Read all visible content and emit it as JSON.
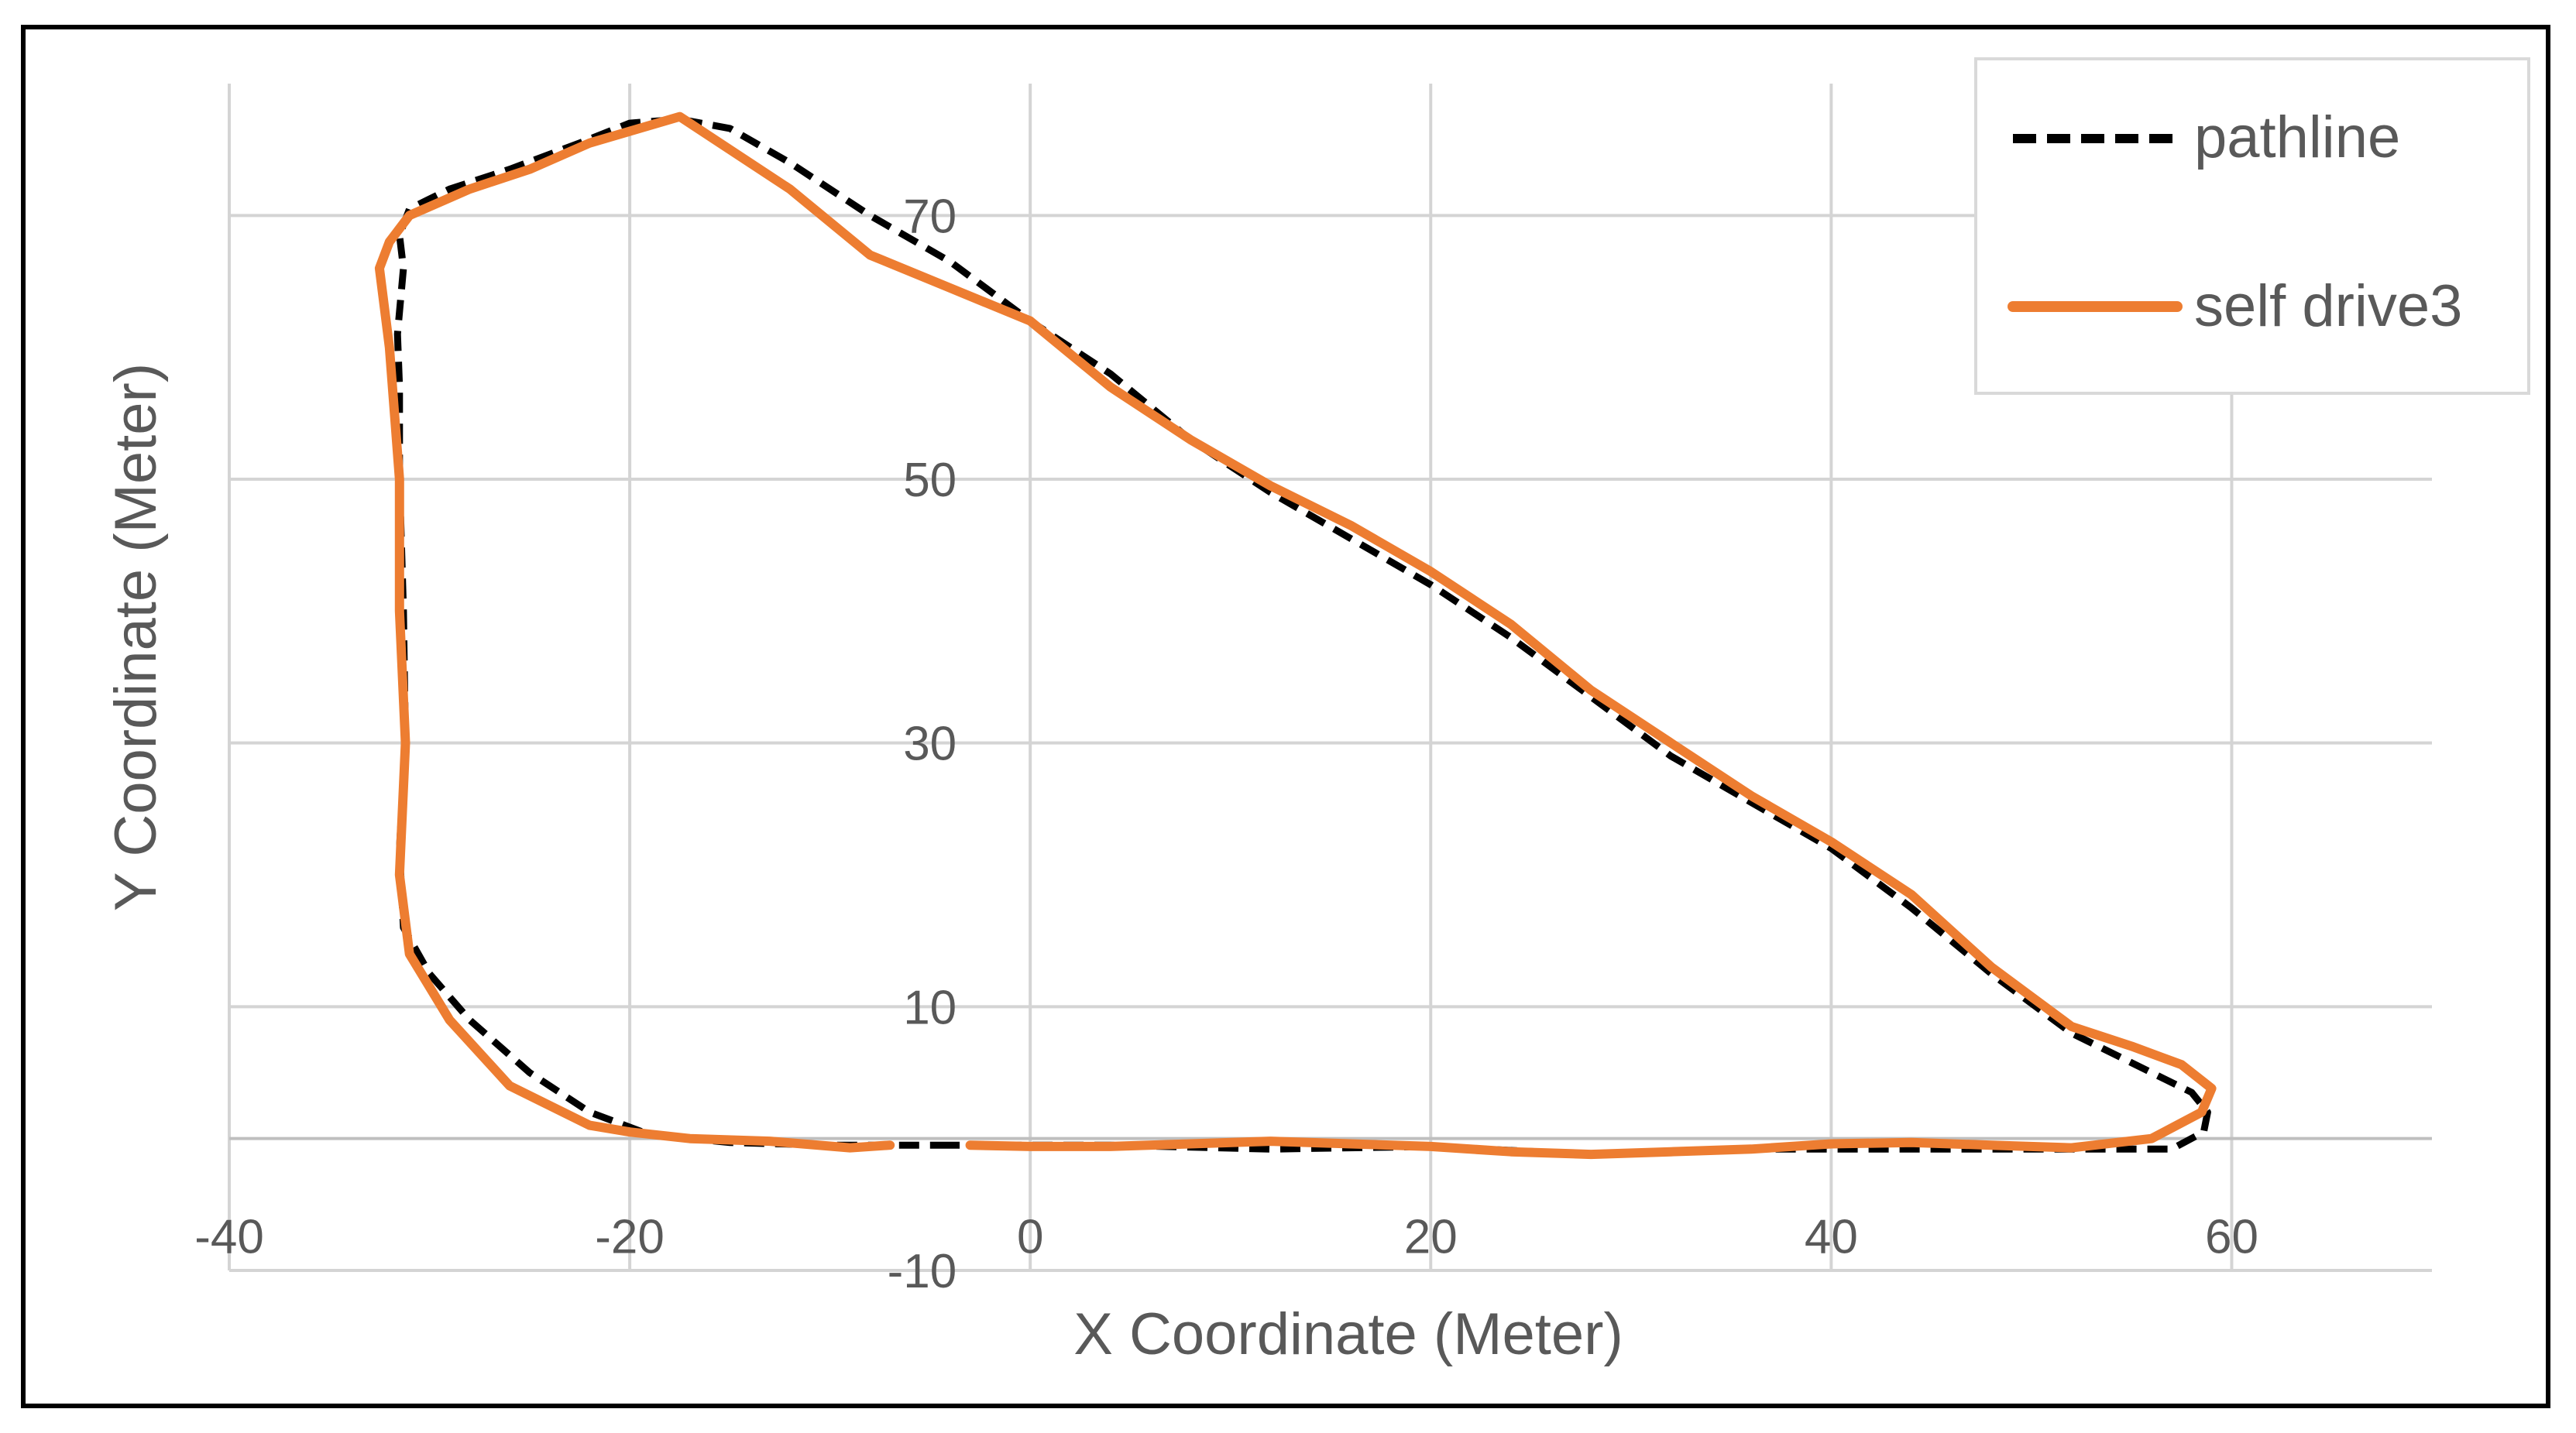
{
  "chart_data": {
    "type": "scatter",
    "title": "",
    "xlabel": "X Coordinate (Meter)",
    "ylabel": "Y Coordinate (Meter)",
    "xlim": [
      -40,
      70
    ],
    "ylim": [
      -10,
      80
    ],
    "x_ticks": [
      -40,
      -20,
      0,
      20,
      40,
      60
    ],
    "y_ticks": [
      -10,
      10,
      30,
      50,
      70
    ],
    "x_tick_labels": [
      "-40",
      "-20",
      "0",
      "20",
      "40",
      "60"
    ],
    "y_tick_labels": [
      "-10",
      "10",
      "30",
      "50",
      "70"
    ],
    "grid": true,
    "legend_position": "top-right",
    "series": [
      {
        "name": "pathline",
        "style": "dashed",
        "color": "#000000",
        "x": [
          -4,
          -10,
          -15,
          -19,
          -22,
          -25,
          -28,
          -30,
          -31.3,
          -31.5,
          -31.2,
          -31.3,
          -31.5,
          -31.5,
          -31.6,
          -31.3,
          -31.5,
          -31,
          -29,
          -26,
          -22.5,
          -20,
          -17.5,
          -15,
          -12,
          -8,
          -4,
          0,
          4,
          8,
          12,
          16,
          20,
          24,
          28,
          32,
          36,
          40,
          44,
          48,
          52,
          56,
          58,
          58.8,
          58.6,
          57,
          52,
          44,
          36,
          28,
          20,
          12,
          4,
          0,
          -4
        ],
        "y": [
          -0.5,
          -0.5,
          -0.3,
          0.3,
          2,
          5,
          9,
          12.5,
          16,
          22,
          30,
          40,
          50,
          57,
          61,
          66,
          68.5,
          70.5,
          72,
          73.5,
          75.5,
          77,
          77.3,
          76.6,
          74,
          70,
          66.5,
          62,
          58,
          53,
          49,
          45.5,
          42,
          38,
          33.5,
          29,
          25.5,
          22,
          17.5,
          12.5,
          8,
          5,
          3.5,
          2,
          0.5,
          -0.8,
          -0.8,
          -0.8,
          -0.8,
          -1.2,
          -0.6,
          -0.8,
          -0.5,
          -0.5,
          -0.5
        ]
      },
      {
        "name": "self drive3",
        "style": "solid",
        "color": "#ed7d31",
        "x": [
          -3,
          0,
          4,
          8,
          12,
          16,
          20,
          24,
          28,
          32,
          36,
          40,
          44,
          48,
          52,
          56,
          58.5,
          59,
          57.5,
          55,
          52,
          48,
          44,
          40,
          36,
          32,
          28,
          24,
          20,
          16,
          12,
          8,
          4,
          0,
          -4,
          -8,
          -12,
          -17.5,
          -22,
          -25,
          -28,
          -31,
          -32,
          -32.5,
          -32,
          -31.5,
          -31.5,
          -31.2,
          -31.5,
          -31,
          -29,
          -26,
          -22,
          -20,
          -17,
          -13,
          -9,
          -7
        ],
        "y": [
          -0.5,
          -0.6,
          -0.6,
          -0.4,
          -0.2,
          -0.4,
          -0.6,
          -1,
          -1.2,
          -1,
          -0.8,
          -0.4,
          -0.3,
          -0.5,
          -0.7,
          0,
          2,
          3.8,
          5.6,
          7,
          8.5,
          13,
          18.5,
          22.5,
          26,
          30,
          34,
          39,
          43,
          46.5,
          49.5,
          53,
          57,
          62,
          64.5,
          67,
          72,
          77.5,
          75.5,
          73.5,
          72,
          70,
          68,
          66,
          60,
          50,
          40,
          30,
          20,
          14,
          9,
          4,
          1,
          0.5,
          0,
          -0.2,
          -0.7,
          -0.5
        ]
      }
    ]
  }
}
